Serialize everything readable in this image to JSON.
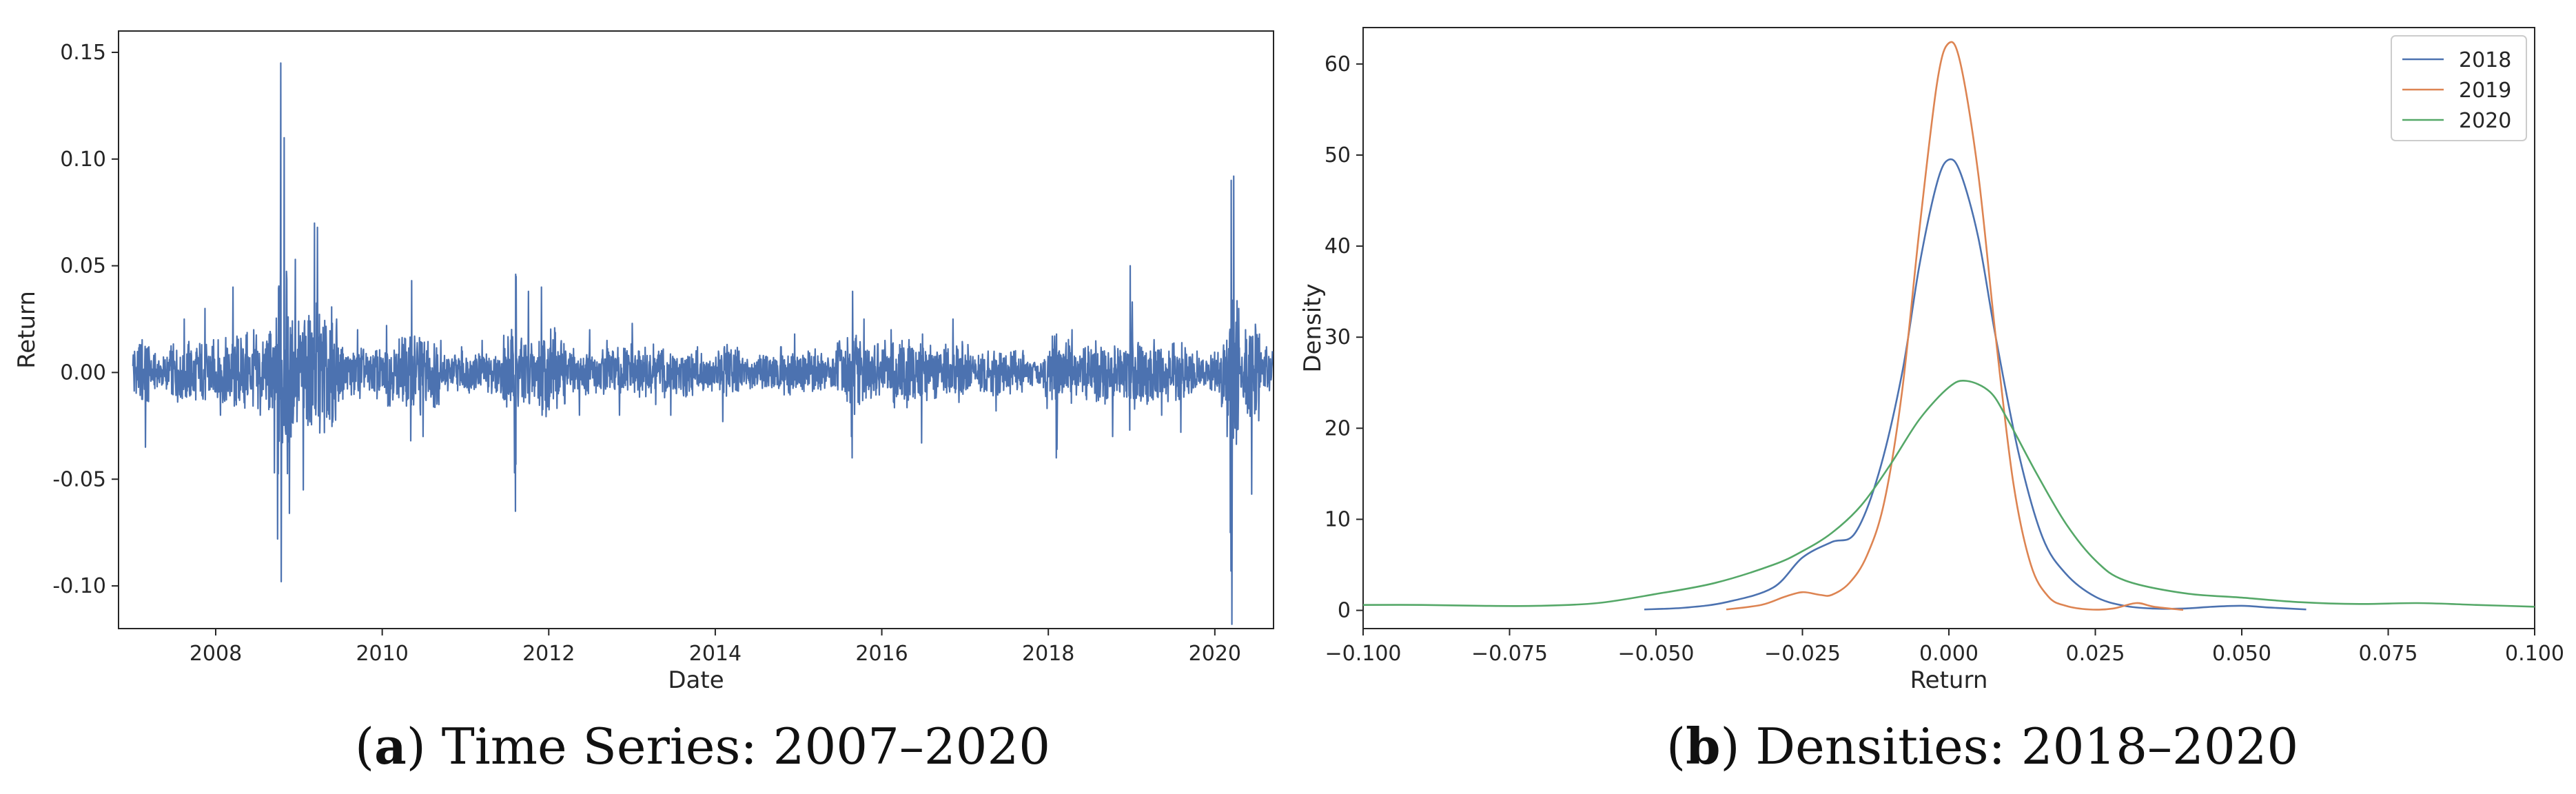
{
  "captions": {
    "a": {
      "label": "a",
      "text": "Time Series: 2007–2020"
    },
    "b": {
      "label": "b",
      "text": "Densities: 2018–2020"
    }
  },
  "chart_data": [
    {
      "type": "line",
      "title": "",
      "xlabel": "Date",
      "ylabel": "Return",
      "xlim": [
        "2006-11-01",
        "2020-09-15"
      ],
      "ylim": [
        -0.12,
        0.16
      ],
      "xticks": [
        "2008",
        "2010",
        "2012",
        "2014",
        "2016",
        "2018",
        "2020"
      ],
      "yticks": [
        "-0.10",
        "-0.05",
        "0.00",
        "0.05",
        "0.10",
        "0.15"
      ],
      "grid": false,
      "series": [
        {
          "color": "#4c72b0",
          "x": [
            "2007-01-03",
            "2007-02-27",
            "2007-03-14",
            "2007-06-15",
            "2007-08-16",
            "2007-11-15",
            "2008-01-22",
            "2008-03-17",
            "2008-07-15",
            "2008-09-15",
            "2008-09-29",
            "2008-10-13",
            "2008-10-15",
            "2008-10-28",
            "2008-11-20",
            "2008-12-16",
            "2009-01-20",
            "2009-03-10",
            "2009-03-23",
            "2009-06-15",
            "2009-09-15",
            "2010-01-20",
            "2010-05-06",
            "2010-05-10",
            "2010-06-29",
            "2010-09-15",
            "2010-12-15",
            "2011-03-15",
            "2011-06-15",
            "2011-08-04",
            "2011-08-08",
            "2011-08-09",
            "2011-08-10",
            "2011-08-11",
            "2011-10-04",
            "2011-11-30",
            "2012-03-15",
            "2012-05-15",
            "2012-06-29",
            "2012-09-13",
            "2012-11-07",
            "2013-01-02",
            "2013-04-15",
            "2013-06-20",
            "2013-10-15",
            "2014-01-15",
            "2014-02-03",
            "2014-04-15",
            "2014-07-15",
            "2014-10-15",
            "2014-10-17",
            "2014-12-15",
            "2015-03-15",
            "2015-06-15",
            "2015-08-21",
            "2015-08-24",
            "2015-08-26",
            "2015-10-15",
            "2016-01-15",
            "2016-02-11",
            "2016-06-24",
            "2016-06-28",
            "2016-11-09",
            "2017-01-15",
            "2017-05-17",
            "2017-09-15",
            "2017-12-15",
            "2018-02-05",
            "2018-02-06",
            "2018-02-08",
            "2018-04-15",
            "2018-07-15",
            "2018-10-10",
            "2018-12-24",
            "2018-12-26",
            "2019-01-04",
            "2019-05-13",
            "2019-08-05",
            "2019-10-15",
            "2019-12-15",
            "2020-01-31",
            "2020-02-24",
            "2020-03-09",
            "2020-03-12",
            "2020-03-13",
            "2020-03-16",
            "2020-03-24",
            "2020-04-15",
            "2020-05-15",
            "2020-06-11",
            "2020-07-15",
            "2020-08-15",
            "2020-09-10"
          ],
          "y": [
            0.003,
            -0.035,
            0.012,
            0.01,
            0.025,
            0.03,
            -0.02,
            0.04,
            -0.02,
            -0.047,
            -0.078,
            0.145,
            -0.098,
            0.11,
            -0.066,
            0.053,
            -0.055,
            0.07,
            0.068,
            0.025,
            0.02,
            0.022,
            -0.032,
            0.043,
            -0.03,
            0.015,
            0.012,
            0.015,
            -0.012,
            -0.047,
            -0.065,
            0.046,
            -0.043,
            0.045,
            0.038,
            0.04,
            0.01,
            -0.02,
            0.02,
            0.015,
            -0.02,
            0.023,
            -0.015,
            -0.02,
            0.012,
            0.01,
            -0.023,
            0.01,
            0.008,
            0.012,
            0.012,
            0.018,
            0.011,
            0.01,
            -0.03,
            -0.04,
            0.038,
            0.025,
            0.015,
            0.02,
            -0.033,
            0.018,
            0.025,
            0.009,
            -0.018,
            0.008,
            0.006,
            -0.04,
            0.018,
            -0.036,
            0.02,
            0.008,
            -0.03,
            -0.027,
            0.05,
            0.033,
            -0.02,
            -0.028,
            0.01,
            0.008,
            -0.016,
            -0.03,
            -0.075,
            -0.093,
            0.09,
            -0.118,
            0.092,
            0.03,
            0.02,
            -0.057,
            0.018,
            0.012,
            0.01
          ]
        }
      ]
    },
    {
      "type": "line",
      "title": "",
      "xlabel": "Return",
      "ylabel": "Density",
      "xlim": [
        -0.1,
        0.1
      ],
      "ylim": [
        -2,
        64
      ],
      "xticks": [
        "−0.100",
        "−0.075",
        "−0.050",
        "−0.025",
        "0.000",
        "0.025",
        "0.050",
        "0.075",
        "0.100"
      ],
      "yticks": [
        "0",
        "10",
        "20",
        "30",
        "40",
        "50",
        "60"
      ],
      "grid": false,
      "legend_position": "top-right",
      "series": [
        {
          "name": "2018",
          "color": "#4c72b0",
          "x": [
            -0.052,
            -0.045,
            -0.038,
            -0.03,
            -0.025,
            -0.02,
            -0.016,
            -0.012,
            -0.008,
            -0.005,
            -0.002,
            0.0,
            0.002,
            0.005,
            0.008,
            0.012,
            0.016,
            0.02,
            0.025,
            0.03,
            0.035,
            0.04,
            0.045,
            0.05,
            0.055,
            0.061
          ],
          "y": [
            0.1,
            0.3,
            0.9,
            2.5,
            5.8,
            7.5,
            8.5,
            15,
            26,
            38,
            47,
            49.5,
            48,
            41,
            30,
            17,
            8,
            4,
            1.5,
            0.5,
            0.2,
            0.2,
            0.4,
            0.5,
            0.3,
            0.1
          ]
        },
        {
          "name": "2019",
          "color": "#dd8452",
          "x": [
            -0.038,
            -0.032,
            -0.028,
            -0.025,
            -0.022,
            -0.02,
            -0.017,
            -0.014,
            -0.011,
            -0.008,
            -0.005,
            -0.002,
            0.0,
            0.002,
            0.005,
            0.008,
            0.011,
            0.014,
            0.017,
            0.02,
            0.024,
            0.028,
            0.032,
            0.035,
            0.04
          ],
          "y": [
            0.1,
            0.6,
            1.5,
            2.0,
            1.7,
            1.7,
            3.0,
            6.0,
            12,
            24,
            42,
            58,
            62.3,
            60,
            48,
            30,
            14,
            5,
            1.5,
            0.5,
            0.1,
            0.2,
            0.8,
            0.4,
            0.05
          ]
        },
        {
          "name": "2020",
          "color": "#55a868",
          "x": [
            -0.1,
            -0.09,
            -0.08,
            -0.07,
            -0.06,
            -0.05,
            -0.04,
            -0.03,
            -0.025,
            -0.02,
            -0.015,
            -0.01,
            -0.005,
            0.0,
            0.003,
            0.007,
            0.01,
            0.015,
            0.02,
            0.025,
            0.03,
            0.04,
            0.05,
            0.06,
            0.07,
            0.08,
            0.09,
            0.1
          ],
          "y": [
            0.6,
            0.6,
            0.5,
            0.5,
            0.8,
            1.8,
            3.0,
            5.0,
            6.5,
            8.5,
            11.5,
            16,
            21,
            24.5,
            25.2,
            24,
            21,
            15,
            9.5,
            5.5,
            3.3,
            1.9,
            1.4,
            0.9,
            0.7,
            0.8,
            0.6,
            0.4
          ]
        }
      ]
    }
  ]
}
